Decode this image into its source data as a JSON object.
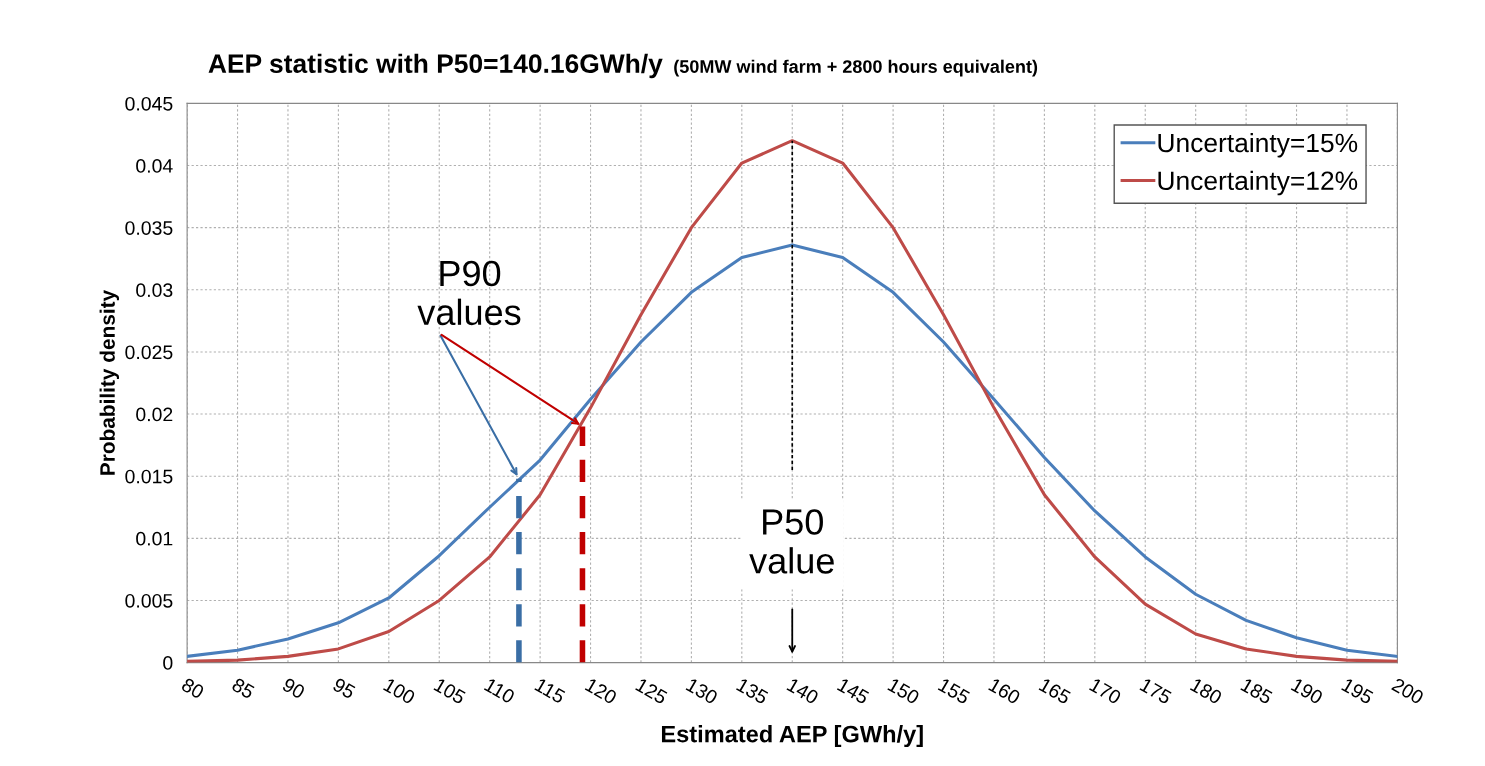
{
  "chart_data": {
    "type": "line",
    "title": "AEP statistic with P50=140.16GWh/y",
    "subtitle": "(50MW wind farm + 2800 hours equivalent)",
    "xlabel": "Estimated AEP [GWh/y]",
    "ylabel": "Probability density",
    "x": [
      80,
      85,
      90,
      95,
      100,
      105,
      110,
      115,
      120,
      125,
      130,
      135,
      140,
      145,
      150,
      155,
      160,
      165,
      170,
      175,
      180,
      185,
      190,
      195,
      200
    ],
    "series": [
      {
        "name": "Uncertainty=15%",
        "color": "#4a7ebb",
        "values": [
          0.0005,
          0.001,
          0.0019,
          0.0032,
          0.0052,
          0.0086,
          0.0125,
          0.0163,
          0.0212,
          0.0258,
          0.0298,
          0.0326,
          0.0336,
          0.0326,
          0.0298,
          0.0258,
          0.0212,
          0.0165,
          0.0122,
          0.0085,
          0.0055,
          0.0034,
          0.002,
          0.001,
          0.0005
        ]
      },
      {
        "name": "Uncertainty=12%",
        "color": "#be4b48",
        "values": [
          0.0001,
          0.0002,
          0.0005,
          0.0011,
          0.0025,
          0.005,
          0.0085,
          0.0135,
          0.0205,
          0.028,
          0.035,
          0.0402,
          0.042,
          0.0402,
          0.035,
          0.028,
          0.0205,
          0.0135,
          0.0085,
          0.0047,
          0.0023,
          0.0011,
          0.0005,
          0.0002,
          0.0001
        ]
      },
      {
        "x": [
          112.9,
          112.9
        ],
        "values": [
          0,
          0.0148
        ],
        "color": "#3a6ea5",
        "line_style": "dashed"
      },
      {
        "x": [
          119.2,
          119.2
        ],
        "values": [
          0,
          0.019
        ],
        "color": "#c00000",
        "line_style": "dashed"
      },
      {
        "x": [
          140,
          140
        ],
        "values": [
          0.0155,
          0.042
        ],
        "color": "#000000",
        "line_style": "dotted"
      }
    ],
    "annotations": [
      {
        "text": "P90\nvalues",
        "x": 112.9,
        "y": 0.0148
      },
      "P50\nvalue"
    ],
    "xlim": [
      80,
      200
    ],
    "xticks": [
      80,
      85,
      90,
      95,
      100,
      105,
      110,
      115,
      120,
      125,
      130,
      135,
      140,
      145,
      150,
      155,
      160,
      165,
      170,
      175,
      180,
      185,
      190,
      195,
      200
    ],
    "ylim": [
      0,
      0.045
    ],
    "yticks": [
      0,
      0.005,
      0.01,
      0.015,
      0.02,
      0.025,
      0.03,
      0.035,
      0.04,
      0.045
    ],
    "grid": true,
    "legend": "top right",
    "marker": "none",
    "line_style": "solid"
  }
}
